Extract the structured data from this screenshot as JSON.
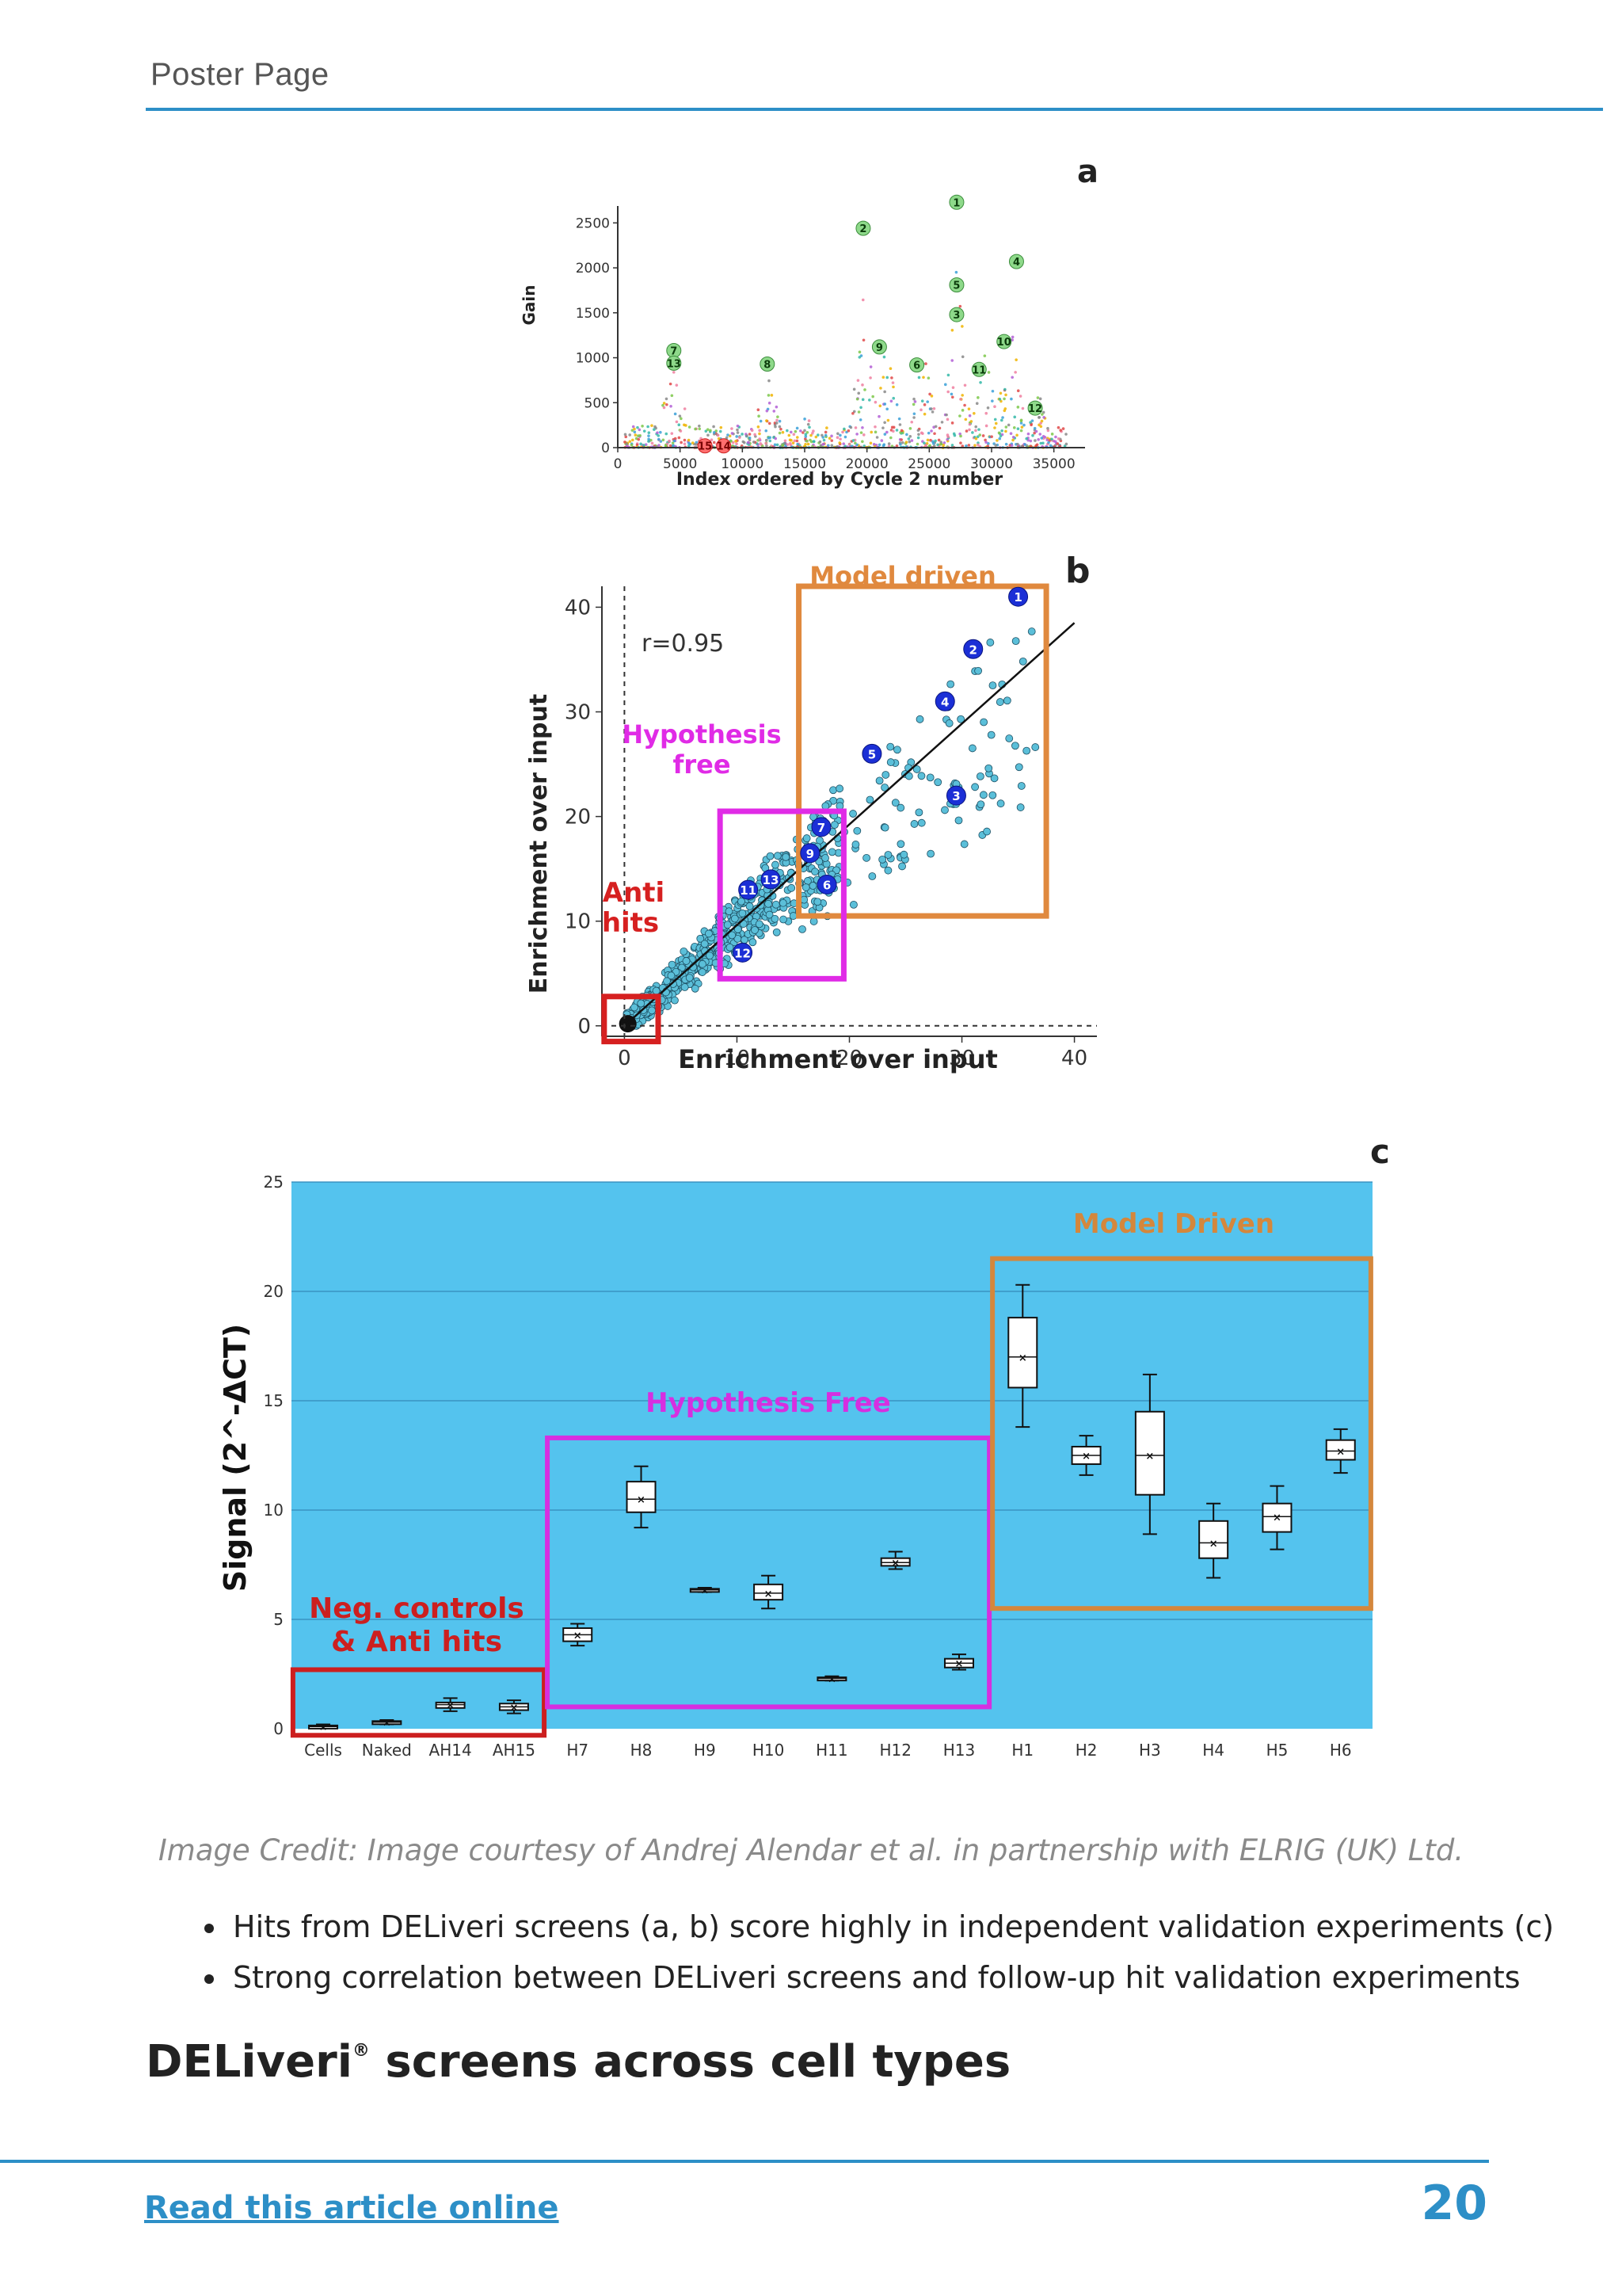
{
  "header": {
    "label": "Poster Page"
  },
  "figure_a": {
    "panel_letter": "a",
    "chart_data": {
      "type": "scatter",
      "xlabel": "Index ordered by Cycle 2 number",
      "ylabel": "Gain",
      "xlim": [
        0,
        37500
      ],
      "ylim": [
        0,
        2600
      ],
      "xticks": [
        0,
        5000,
        10000,
        15000,
        20000,
        25000,
        30000,
        35000
      ],
      "yticks": [
        0,
        500,
        1000,
        1500,
        2000,
        2500
      ],
      "labeled_hits": [
        {
          "label": "1",
          "x": 27200,
          "y": 2730
        },
        {
          "label": "2",
          "x": 19700,
          "y": 2440
        },
        {
          "label": "4",
          "x": 32000,
          "y": 2070
        },
        {
          "label": "5",
          "x": 27200,
          "y": 1810
        },
        {
          "label": "3",
          "x": 27200,
          "y": 1480
        },
        {
          "label": "10",
          "x": 31000,
          "y": 1180
        },
        {
          "label": "9",
          "x": 21000,
          "y": 1120
        },
        {
          "label": "7",
          "x": 4500,
          "y": 1080
        },
        {
          "label": "13",
          "x": 4500,
          "y": 940
        },
        {
          "label": "8",
          "x": 12000,
          "y": 930
        },
        {
          "label": "6",
          "x": 24000,
          "y": 920
        },
        {
          "label": "11",
          "x": 29000,
          "y": 870
        },
        {
          "label": "12",
          "x": 33500,
          "y": 440
        },
        {
          "label": "15",
          "x": 7000,
          "y": 20
        },
        {
          "label": "14",
          "x": 8500,
          "y": 20
        }
      ]
    }
  },
  "figure_b": {
    "panel_letter": "b",
    "chart_data": {
      "type": "scatter",
      "xlabel": "Enrichment over input",
      "ylabel": "Enrichment over input",
      "xlim": [
        -2,
        42
      ],
      "ylim": [
        -1,
        42
      ],
      "xticks": [
        0,
        10,
        20,
        30,
        40
      ],
      "yticks": [
        0,
        10,
        20,
        30,
        40
      ],
      "correlation": "r=0.95",
      "regions": [
        {
          "label": "Model driven",
          "color": "#e0893e",
          "x": [
            15.5,
            37.5
          ],
          "y": [
            10.5,
            42
          ]
        },
        {
          "label": "Hypothesis\nfree",
          "color": "#e02be6",
          "x": [
            8.5,
            19.5
          ],
          "y": [
            4.5,
            20.5
          ]
        },
        {
          "label": "Anti\nhits",
          "color": "#d62020",
          "x": [
            -1.8,
            3
          ],
          "y": [
            -1.5,
            2.8
          ]
        }
      ],
      "region_labels": {
        "model": "Model driven",
        "hyp_line1": "Hypothesis",
        "hyp_line2": "free",
        "anti_line1": "Anti",
        "anti_line2": "hits"
      },
      "labeled_hits": [
        {
          "label": "1",
          "x": 35,
          "y": 41
        },
        {
          "label": "2",
          "x": 31,
          "y": 36
        },
        {
          "label": "4",
          "x": 28.5,
          "y": 31
        },
        {
          "label": "5",
          "x": 22,
          "y": 26
        },
        {
          "label": "3",
          "x": 29.5,
          "y": 22
        },
        {
          "label": "7",
          "x": 17.5,
          "y": 19
        },
        {
          "label": "9",
          "x": 16.5,
          "y": 16.5
        },
        {
          "label": "6",
          "x": 18,
          "y": 13.5
        },
        {
          "label": "13",
          "x": 13,
          "y": 14
        },
        {
          "label": "11",
          "x": 11,
          "y": 13
        },
        {
          "label": "12",
          "x": 10.5,
          "y": 7
        }
      ]
    }
  },
  "figure_c": {
    "panel_letter": "c",
    "chart_data": {
      "type": "box",
      "ylabel": "Signal (2^-ΔCT)",
      "ylim": [
        0,
        25
      ],
      "yticks": [
        0,
        5,
        10,
        15,
        20,
        25
      ],
      "background": "#54c3ee",
      "categories": [
        "Cells",
        "Naked",
        "AH14",
        "AH15",
        "H7",
        "H8",
        "H9",
        "H10",
        "H11",
        "H12",
        "H13",
        "H1",
        "H2",
        "H3",
        "H4",
        "H5",
        "H6"
      ],
      "boxes": [
        {
          "min": 0.05,
          "q1": 0.05,
          "median": 0.1,
          "q3": 0.15,
          "max": 0.2
        },
        {
          "min": 0.2,
          "q1": 0.25,
          "median": 0.3,
          "q3": 0.35,
          "max": 0.4
        },
        {
          "min": 0.8,
          "q1": 0.95,
          "median": 1.1,
          "q3": 1.2,
          "max": 1.4
        },
        {
          "min": 0.7,
          "q1": 0.85,
          "median": 1.0,
          "q3": 1.15,
          "max": 1.3
        },
        {
          "min": 3.8,
          "q1": 4.0,
          "median": 4.3,
          "q3": 4.6,
          "max": 4.8
        },
        {
          "min": 9.2,
          "q1": 9.9,
          "median": 10.5,
          "q3": 11.3,
          "max": 12.0
        },
        {
          "min": 6.25,
          "q1": 6.3,
          "median": 6.35,
          "q3": 6.4,
          "max": 6.45
        },
        {
          "min": 5.5,
          "q1": 5.9,
          "median": 6.2,
          "q3": 6.6,
          "max": 7.0
        },
        {
          "min": 2.2,
          "q1": 2.25,
          "median": 2.3,
          "q3": 2.35,
          "max": 2.4
        },
        {
          "min": 7.3,
          "q1": 7.45,
          "median": 7.6,
          "q3": 7.8,
          "max": 8.1
        },
        {
          "min": 2.7,
          "q1": 2.8,
          "median": 3.0,
          "q3": 3.2,
          "max": 3.4
        },
        {
          "min": 13.8,
          "q1": 15.6,
          "median": 17.0,
          "q3": 18.8,
          "max": 20.3
        },
        {
          "min": 11.6,
          "q1": 12.1,
          "median": 12.5,
          "q3": 12.9,
          "max": 13.4
        },
        {
          "min": 8.9,
          "q1": 10.7,
          "median": 12.5,
          "q3": 14.5,
          "max": 16.2
        },
        {
          "min": 6.9,
          "q1": 7.8,
          "median": 8.5,
          "q3": 9.5,
          "max": 10.3
        },
        {
          "min": 8.2,
          "q1": 9.0,
          "median": 9.7,
          "q3": 10.3,
          "max": 11.1
        },
        {
          "min": 11.7,
          "q1": 12.3,
          "median": 12.7,
          "q3": 13.2,
          "max": 13.7
        }
      ],
      "regions": [
        {
          "label": "Neg. controls & Anti hits",
          "color": "#cc1f1f",
          "from_category": 0,
          "to_category": 3,
          "y": [
            -0.3,
            2.7
          ]
        },
        {
          "label": "Hypothesis Free",
          "color": "#d62fe0",
          "from_category": 4,
          "to_category": 10,
          "y": [
            1.0,
            13.3
          ]
        },
        {
          "label": "Model Driven",
          "color": "#d4873c",
          "from_category": 11,
          "to_category": 16,
          "y": [
            5.5,
            21.5
          ]
        }
      ],
      "region_labels": {
        "neg_line1": "Neg. controls",
        "neg_line2": "& Anti hits",
        "hyp": "Hypothesis Free",
        "model": "Model Driven"
      }
    }
  },
  "credit": "Image Credit: Image courtesy of Andrej Alendar et al. in partnership with ELRIG (UK) Ltd.",
  "bullets": [
    "Hits from DELiveri screens (a, b) score highly in independent validation experiments (c)",
    "Strong correlation between DELiveri screens and follow-up hit validation experiments"
  ],
  "section_heading": {
    "main": "DELiveri",
    "sup": "®",
    "rest": " screens across cell types"
  },
  "footer": {
    "link_text": "Read this article online",
    "page_number": "20"
  }
}
